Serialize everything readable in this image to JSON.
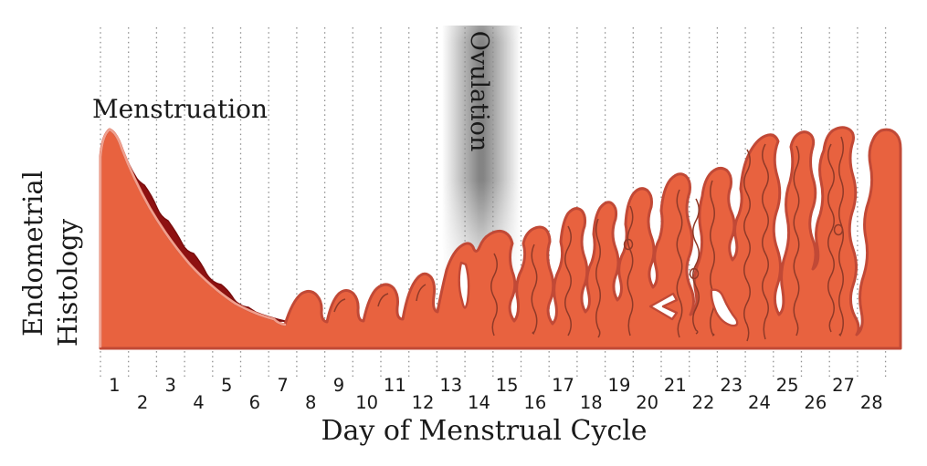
{
  "labels": {
    "y_axis_line1": "Endometrial",
    "y_axis_line2": "Histology",
    "x_axis": "Day of Menstrual Cycle",
    "menstruation": "Menstruation",
    "ovulation": "Ovulation"
  },
  "axis": {
    "days": [
      1,
      2,
      3,
      4,
      5,
      6,
      7,
      8,
      9,
      10,
      11,
      12,
      13,
      14,
      15,
      16,
      17,
      18,
      19,
      20,
      21,
      22,
      23,
      24,
      25,
      26,
      27,
      28
    ]
  },
  "colors": {
    "endometrium_fill": "#E8623F",
    "endometrium_stroke": "#C14936",
    "shed_layer": "#8E1111",
    "shed_layer_edge": "#7A0D0D",
    "shed_edge_highlight": "#F0A08E",
    "gland_line": "#8F3A28",
    "gridline": "#8F8F8F",
    "ovulation_band": "#6F6F6F",
    "text": "#1A1A1A"
  }
}
